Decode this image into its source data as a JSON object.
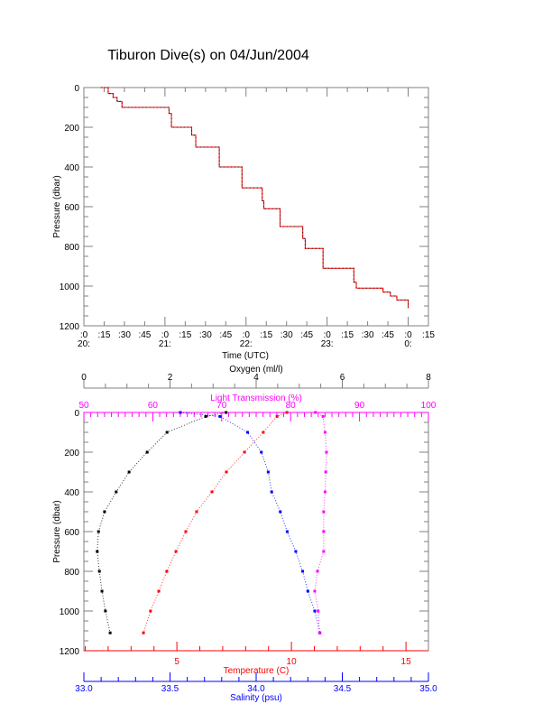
{
  "title": "Tiburon Dive(s) on 04/Jun/2004",
  "colors": {
    "axis": "#808080",
    "oxygen": "#000000",
    "temperature": "#ff0000",
    "salinity": "#0000ff",
    "light": "#ff00ff",
    "track": "#ff0000"
  },
  "chart_data": [
    {
      "type": "line",
      "name": "dive-track",
      "xlabel": "Time (UTC)",
      "ylabel": "Pressure (dbar)",
      "xlim_hours_since_20": [
        0,
        4.25
      ],
      "ylim": [
        0,
        1200
      ],
      "yticks": [
        "0",
        "200",
        "400",
        "600",
        "800",
        "1000",
        "1200"
      ],
      "xticks_minutes": [
        ":0",
        ":15",
        ":30",
        ":45",
        ":0",
        ":15",
        ":30",
        ":45",
        ":0",
        ":15",
        ":30",
        ":45",
        ":0",
        ":15",
        ":30",
        ":45",
        ":0",
        ":15"
      ],
      "xticks_hours": [
        "20:",
        "21:",
        "22:",
        "23:",
        "0:"
      ],
      "x": [
        0.21,
        0.3,
        0.36,
        0.41,
        0.47,
        1.03,
        1.05,
        1.08,
        1.3,
        1.33,
        1.38,
        1.64,
        1.67,
        1.91,
        1.95,
        2.17,
        2.2,
        2.22,
        2.38,
        2.42,
        2.68,
        2.7,
        2.73,
        2.94,
        2.95,
        3.31,
        3.33,
        3.36,
        3.57,
        3.69,
        3.78,
        3.86,
        4.0
      ],
      "y": [
        0,
        30,
        50,
        70,
        100,
        100,
        130,
        200,
        200,
        240,
        300,
        300,
        400,
        400,
        505,
        505,
        570,
        610,
        610,
        700,
        700,
        760,
        810,
        810,
        910,
        910,
        980,
        1010,
        1010,
        1030,
        1050,
        1070,
        1110
      ]
    },
    {
      "type": "line",
      "name": "profiles",
      "ylabel": "Pressure (dbar)",
      "ylim": [
        0,
        1200
      ],
      "yticks": [
        "0",
        "200",
        "400",
        "600",
        "800",
        "1000",
        "1200"
      ],
      "pressure": [
        0,
        20,
        100,
        200,
        300,
        400,
        500,
        600,
        700,
        800,
        900,
        1000,
        1110
      ],
      "series": [
        {
          "name": "Oxygen (ml/l)",
          "axis": "oxygen",
          "values": [
            3.3,
            2.83,
            1.93,
            1.47,
            1.05,
            0.75,
            0.48,
            0.34,
            0.31,
            0.36,
            0.42,
            0.5,
            0.61
          ]
        },
        {
          "name": "Temperature (C)",
          "axis": "temperature",
          "values": [
            9.8,
            9.37,
            8.77,
            7.95,
            7.16,
            6.53,
            5.86,
            5.39,
            4.96,
            4.56,
            4.21,
            3.85,
            3.54
          ]
        },
        {
          "name": "Salinity (psu)",
          "axis": "salinity",
          "values": [
            33.56,
            33.79,
            33.95,
            34.03,
            34.07,
            34.09,
            34.14,
            34.18,
            34.23,
            34.27,
            34.3,
            34.34,
            34.37
          ]
        },
        {
          "name": "Light Transmission (%)",
          "axis": "light",
          "values": [
            83.6,
            84.7,
            85.0,
            85.2,
            85.1,
            85.0,
            84.8,
            84.8,
            84.8,
            83.9,
            83.5,
            84.0,
            84.2
          ]
        }
      ],
      "axes": {
        "oxygen": {
          "label": "Oxygen (ml/l)",
          "range": [
            0,
            8
          ],
          "ticks": [
            "0",
            "2",
            "4",
            "6",
            "8"
          ]
        },
        "light": {
          "label": "Light Transmission (%)",
          "range": [
            50,
            100
          ],
          "ticks": [
            "50",
            "60",
            "70",
            "80",
            "90",
            "100"
          ]
        },
        "temperature": {
          "label": "Temperature (C)",
          "range": [
            0.94,
            15.98
          ],
          "ticks": [
            "5",
            "10",
            "15"
          ]
        },
        "salinity": {
          "label": "Salinity (psu)",
          "range": [
            33.0,
            35.0
          ],
          "ticks": [
            "33.0",
            "33.5",
            "34.0",
            "34.5",
            "35.0"
          ]
        }
      }
    }
  ]
}
